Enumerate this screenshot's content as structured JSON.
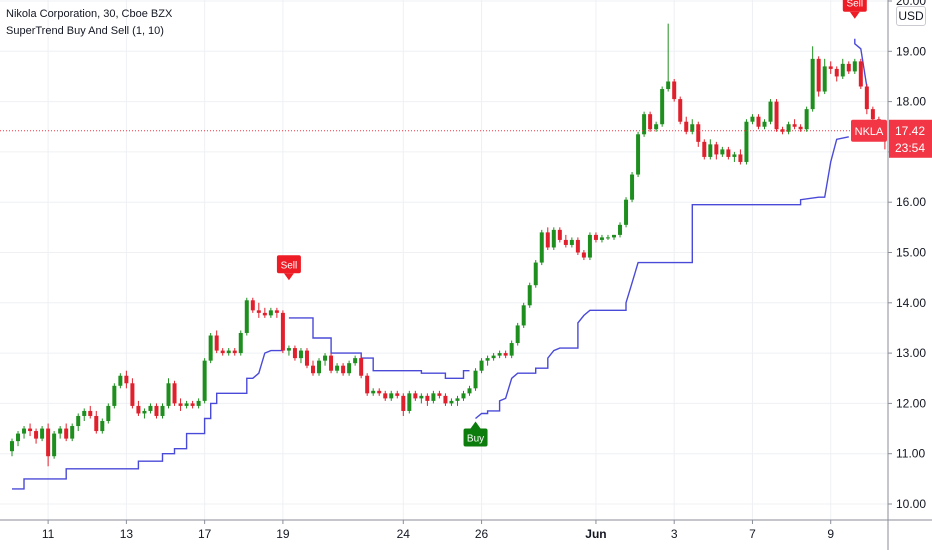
{
  "header": {
    "symbol_line": "Nikola Corporation, 30, Cboe BZX",
    "indicator_line": "SuperTrend Buy And Sell (1, 10)",
    "currency": "USD"
  },
  "price_tag": {
    "ticker": "NKLA",
    "price": "17.42",
    "countdown": "23:54",
    "value": 17.42,
    "color": "#f23645"
  },
  "colors": {
    "up": "#1e8f1e",
    "down": "#e0202c",
    "supertrend": "#4a4ad8",
    "sell_signal": "#ee1c25",
    "buy_signal": "#0c7c0c",
    "grid": "#eef0f4",
    "axis_text": "#131722"
  },
  "chart_data": {
    "type": "candlestick",
    "title": "Nikola Corporation, 30, Cboe BZX",
    "indicator": "SuperTrend Buy And Sell (1, 10)",
    "ylim": [
      9.75,
      20.0
    ],
    "y_ticks": [
      10.0,
      11.0,
      12.0,
      13.0,
      14.0,
      15.0,
      16.0,
      17.0,
      18.0,
      19.0,
      20.0
    ],
    "y_tick_labels": [
      "10.00",
      "11.00",
      "12.00",
      "13.00",
      "14.00",
      "15.00",
      "16.00",
      "17.00",
      "18.00",
      "19.00",
      "20.00"
    ],
    "x_ticks": [
      {
        "label": "11",
        "idx": 6
      },
      {
        "label": "13",
        "idx": 19
      },
      {
        "label": "17",
        "idx": 32
      },
      {
        "label": "19",
        "idx": 45
      },
      {
        "label": "24",
        "idx": 65
      },
      {
        "label": "26",
        "idx": 78
      },
      {
        "label": "Jun",
        "idx": 97,
        "bold": true
      },
      {
        "label": "3",
        "idx": 110
      },
      {
        "label": "7",
        "idx": 123
      },
      {
        "label": "9",
        "idx": 136
      }
    ],
    "candles": [
      [
        11.05,
        11.3,
        10.95,
        11.25
      ],
      [
        11.25,
        11.45,
        11.15,
        11.4
      ],
      [
        11.4,
        11.55,
        11.3,
        11.5
      ],
      [
        11.5,
        11.6,
        11.35,
        11.45
      ],
      [
        11.45,
        11.5,
        11.2,
        11.3
      ],
      [
        11.3,
        11.55,
        11.25,
        11.5
      ],
      [
        11.5,
        11.6,
        10.75,
        10.95
      ],
      [
        10.95,
        11.45,
        10.9,
        11.4
      ],
      [
        11.4,
        11.55,
        11.3,
        11.5
      ],
      [
        11.5,
        11.6,
        11.25,
        11.3
      ],
      [
        11.3,
        11.6,
        11.25,
        11.55
      ],
      [
        11.55,
        11.8,
        11.45,
        11.75
      ],
      [
        11.75,
        11.9,
        11.65,
        11.85
      ],
      [
        11.85,
        11.95,
        11.7,
        11.75
      ],
      [
        11.75,
        11.85,
        11.4,
        11.45
      ],
      [
        11.45,
        11.7,
        11.4,
        11.65
      ],
      [
        11.65,
        12.0,
        11.6,
        11.95
      ],
      [
        11.95,
        12.4,
        11.9,
        12.35
      ],
      [
        12.35,
        12.6,
        12.3,
        12.55
      ],
      [
        12.55,
        12.65,
        12.3,
        12.4
      ],
      [
        12.4,
        12.5,
        11.9,
        11.95
      ],
      [
        11.95,
        12.05,
        11.75,
        11.8
      ],
      [
        11.8,
        11.9,
        11.7,
        11.85
      ],
      [
        11.85,
        12.0,
        11.8,
        11.95
      ],
      [
        11.95,
        12.0,
        11.7,
        11.75
      ],
      [
        11.75,
        12.0,
        11.7,
        11.95
      ],
      [
        11.95,
        12.5,
        11.9,
        12.4
      ],
      [
        12.4,
        12.45,
        11.95,
        12.0
      ],
      [
        12.0,
        12.1,
        11.85,
        11.95
      ],
      [
        11.95,
        12.05,
        11.9,
        12.0
      ],
      [
        12.0,
        12.05,
        11.9,
        11.95
      ],
      [
        11.95,
        12.1,
        11.9,
        12.05
      ],
      [
        12.05,
        12.9,
        12.0,
        12.85
      ],
      [
        12.85,
        13.4,
        12.8,
        13.35
      ],
      [
        13.35,
        13.45,
        13.0,
        13.05
      ],
      [
        13.05,
        13.1,
        12.95,
        13.0
      ],
      [
        13.0,
        13.1,
        12.95,
        13.05
      ],
      [
        13.05,
        13.1,
        12.95,
        13.0
      ],
      [
        13.0,
        13.45,
        12.95,
        13.4
      ],
      [
        13.4,
        14.1,
        13.35,
        14.05
      ],
      [
        14.05,
        14.1,
        13.8,
        13.85
      ],
      [
        13.85,
        14.0,
        13.7,
        13.8
      ],
      [
        13.8,
        13.9,
        13.7,
        13.75
      ],
      [
        13.75,
        13.9,
        13.7,
        13.85
      ],
      [
        13.85,
        13.9,
        13.7,
        13.8
      ],
      [
        13.8,
        13.85,
        13.0,
        13.05
      ],
      [
        13.05,
        13.15,
        12.95,
        13.1
      ],
      [
        13.1,
        13.15,
        12.85,
        12.9
      ],
      [
        12.9,
        13.1,
        12.8,
        13.05
      ],
      [
        13.05,
        13.1,
        12.7,
        12.75
      ],
      [
        12.75,
        12.85,
        12.55,
        12.6
      ],
      [
        12.6,
        12.9,
        12.55,
        12.85
      ],
      [
        12.85,
        13.0,
        12.75,
        12.95
      ],
      [
        12.95,
        13.0,
        12.6,
        12.65
      ],
      [
        12.65,
        12.8,
        12.6,
        12.75
      ],
      [
        12.75,
        12.8,
        12.55,
        12.6
      ],
      [
        12.6,
        12.85,
        12.55,
        12.8
      ],
      [
        12.8,
        12.95,
        12.75,
        12.9
      ],
      [
        12.9,
        12.95,
        12.5,
        12.55
      ],
      [
        12.55,
        12.6,
        12.15,
        12.2
      ],
      [
        12.2,
        12.3,
        12.15,
        12.25
      ],
      [
        12.25,
        12.3,
        12.15,
        12.2
      ],
      [
        12.2,
        12.25,
        12.05,
        12.1
      ],
      [
        12.1,
        12.25,
        12.05,
        12.2
      ],
      [
        12.2,
        12.25,
        12.1,
        12.15
      ],
      [
        12.15,
        12.2,
        11.75,
        11.85
      ],
      [
        11.85,
        12.25,
        11.8,
        12.2
      ],
      [
        12.2,
        12.25,
        12.05,
        12.1
      ],
      [
        12.1,
        12.2,
        12.0,
        12.15
      ],
      [
        12.15,
        12.2,
        11.95,
        12.05
      ],
      [
        12.05,
        12.25,
        12.0,
        12.2
      ],
      [
        12.2,
        12.25,
        12.1,
        12.15
      ],
      [
        12.15,
        12.2,
        11.95,
        12.0
      ],
      [
        12.0,
        12.1,
        11.95,
        12.05
      ],
      [
        12.05,
        12.15,
        11.95,
        12.1
      ],
      [
        12.1,
        12.25,
        12.05,
        12.2
      ],
      [
        12.2,
        12.35,
        12.15,
        12.3
      ],
      [
        12.3,
        12.7,
        12.25,
        12.65
      ],
      [
        12.65,
        12.9,
        12.6,
        12.85
      ],
      [
        12.85,
        12.95,
        12.75,
        12.9
      ],
      [
        12.9,
        13.0,
        12.85,
        12.95
      ],
      [
        12.95,
        13.05,
        12.9,
        13.0
      ],
      [
        13.0,
        13.05,
        12.9,
        12.95
      ],
      [
        12.95,
        13.25,
        12.9,
        13.2
      ],
      [
        13.2,
        13.6,
        13.15,
        13.55
      ],
      [
        13.55,
        14.0,
        13.5,
        13.95
      ],
      [
        13.95,
        14.4,
        13.9,
        14.35
      ],
      [
        14.35,
        14.85,
        14.3,
        14.8
      ],
      [
        14.8,
        15.45,
        14.75,
        15.4
      ],
      [
        15.4,
        15.5,
        15.05,
        15.1
      ],
      [
        15.1,
        15.5,
        15.05,
        15.45
      ],
      [
        15.45,
        15.5,
        15.2,
        15.25
      ],
      [
        15.25,
        15.35,
        15.1,
        15.15
      ],
      [
        15.15,
        15.3,
        15.1,
        15.25
      ],
      [
        15.25,
        15.3,
        14.95,
        15.0
      ],
      [
        15.0,
        15.05,
        14.85,
        14.9
      ],
      [
        14.9,
        15.4,
        14.85,
        15.35
      ],
      [
        15.35,
        15.4,
        15.2,
        15.25
      ],
      [
        15.25,
        15.35,
        15.2,
        15.3
      ],
      [
        15.3,
        15.35,
        15.25,
        15.3
      ],
      [
        15.3,
        15.35,
        15.25,
        15.35
      ],
      [
        15.35,
        15.6,
        15.3,
        15.55
      ],
      [
        15.55,
        16.1,
        15.5,
        16.05
      ],
      [
        16.05,
        16.6,
        16.0,
        16.55
      ],
      [
        16.55,
        17.4,
        16.5,
        17.35
      ],
      [
        17.35,
        17.8,
        17.3,
        17.75
      ],
      [
        17.75,
        17.8,
        17.4,
        17.45
      ],
      [
        17.45,
        17.6,
        17.4,
        17.55
      ],
      [
        17.55,
        18.3,
        17.5,
        18.25
      ],
      [
        18.25,
        19.55,
        18.2,
        18.4
      ],
      [
        18.4,
        18.45,
        18.0,
        18.05
      ],
      [
        18.05,
        18.1,
        17.55,
        17.6
      ],
      [
        17.6,
        17.7,
        17.35,
        17.4
      ],
      [
        17.4,
        17.65,
        17.35,
        17.55
      ],
      [
        17.55,
        17.6,
        17.1,
        17.2
      ],
      [
        17.2,
        17.25,
        16.85,
        16.9
      ],
      [
        16.9,
        17.25,
        16.85,
        17.15
      ],
      [
        17.15,
        17.2,
        16.85,
        16.95
      ],
      [
        16.95,
        17.1,
        16.9,
        17.05
      ],
      [
        17.05,
        17.1,
        16.85,
        16.9
      ],
      [
        16.9,
        17.0,
        16.8,
        16.95
      ],
      [
        16.95,
        17.05,
        16.75,
        16.8
      ],
      [
        16.8,
        17.65,
        16.75,
        17.6
      ],
      [
        17.6,
        17.75,
        17.55,
        17.7
      ],
      [
        17.7,
        17.75,
        17.45,
        17.5
      ],
      [
        17.5,
        17.65,
        17.45,
        17.6
      ],
      [
        17.6,
        18.05,
        17.55,
        18.0
      ],
      [
        18.0,
        18.05,
        17.4,
        17.45
      ],
      [
        17.45,
        17.5,
        17.35,
        17.4
      ],
      [
        17.4,
        17.6,
        17.35,
        17.55
      ],
      [
        17.55,
        17.65,
        17.45,
        17.5
      ],
      [
        17.5,
        17.55,
        17.4,
        17.45
      ],
      [
        17.45,
        17.9,
        17.4,
        17.85
      ],
      [
        17.85,
        19.1,
        17.8,
        18.85
      ],
      [
        18.85,
        18.9,
        18.1,
        18.2
      ],
      [
        18.2,
        18.85,
        18.15,
        18.7
      ],
      [
        18.7,
        18.8,
        18.55,
        18.65
      ],
      [
        18.65,
        18.7,
        18.4,
        18.5
      ],
      [
        18.5,
        18.85,
        18.45,
        18.75
      ],
      [
        18.75,
        18.8,
        18.55,
        18.6
      ],
      [
        18.6,
        18.85,
        18.55,
        18.8
      ],
      [
        18.8,
        18.85,
        18.25,
        18.3
      ],
      [
        18.3,
        18.35,
        17.75,
        17.85
      ],
      [
        17.85,
        17.9,
        17.6,
        17.65
      ],
      [
        17.65,
        17.7,
        17.45,
        17.55
      ],
      [
        17.55,
        17.6,
        17.05,
        17.4
      ]
    ],
    "supertrend_up": [
      [
        0,
        10.3
      ],
      [
        2,
        10.3
      ],
      [
        2,
        10.5
      ],
      [
        9,
        10.5
      ],
      [
        9,
        10.7
      ],
      [
        21,
        10.7
      ],
      [
        21,
        10.85
      ],
      [
        25,
        10.85
      ],
      [
        25,
        11.0
      ],
      [
        27,
        11.0
      ],
      [
        27,
        11.1
      ],
      [
        29,
        11.1
      ],
      [
        29,
        11.4
      ],
      [
        32,
        11.4
      ],
      [
        32,
        11.7
      ],
      [
        33,
        11.7
      ],
      [
        33,
        12.0
      ],
      [
        34,
        12.0
      ],
      [
        34,
        12.2
      ],
      [
        39,
        12.2
      ],
      [
        39,
        12.5
      ],
      [
        40,
        12.5
      ],
      [
        41,
        12.6
      ],
      [
        42,
        13.0
      ],
      [
        43,
        13.05
      ],
      [
        45,
        13.05
      ]
    ],
    "supertrend_down": [
      [
        46,
        13.7
      ],
      [
        50,
        13.7
      ],
      [
        50,
        13.3
      ],
      [
        53,
        13.3
      ],
      [
        53,
        13.0
      ],
      [
        58,
        13.0
      ],
      [
        58,
        12.9
      ],
      [
        60,
        12.9
      ],
      [
        60,
        12.65
      ],
      [
        68,
        12.65
      ],
      [
        68,
        12.6
      ],
      [
        72,
        12.6
      ],
      [
        72,
        12.5
      ],
      [
        75,
        12.5
      ],
      [
        75,
        12.65
      ],
      [
        76,
        12.65
      ]
    ],
    "supertrend_up2": [
      [
        77,
        11.7
      ],
      [
        78,
        11.8
      ],
      [
        79,
        11.8
      ],
      [
        79,
        11.85
      ],
      [
        81,
        11.85
      ],
      [
        81,
        12.05
      ],
      [
        82,
        12.1
      ],
      [
        83,
        12.5
      ],
      [
        84,
        12.6
      ],
      [
        87,
        12.6
      ],
      [
        87,
        12.7
      ],
      [
        89,
        12.7
      ],
      [
        89,
        12.9
      ],
      [
        90,
        13.05
      ],
      [
        91,
        13.1
      ],
      [
        94,
        13.1
      ],
      [
        94,
        13.6
      ],
      [
        95,
        13.75
      ],
      [
        96,
        13.85
      ],
      [
        102,
        13.85
      ],
      [
        102,
        14.0
      ],
      [
        103,
        14.4
      ],
      [
        104,
        14.8
      ],
      [
        113,
        14.8
      ],
      [
        113,
        15.95
      ],
      [
        131,
        15.95
      ],
      [
        131,
        16.05
      ],
      [
        134,
        16.1
      ],
      [
        135,
        16.1
      ],
      [
        136,
        16.8
      ],
      [
        137,
        17.25
      ],
      [
        139,
        17.3
      ]
    ],
    "supertrend_down2": [
      [
        140,
        19.25
      ],
      [
        140,
        19.15
      ],
      [
        141,
        19.05
      ],
      [
        142,
        18.3
      ]
    ],
    "signals": [
      {
        "type": "Sell",
        "idx": 46,
        "value": 14.05
      },
      {
        "type": "Buy",
        "idx": 77,
        "value": 11.7
      },
      {
        "type": "Sell",
        "idx": 140,
        "value": 19.25
      }
    ]
  }
}
